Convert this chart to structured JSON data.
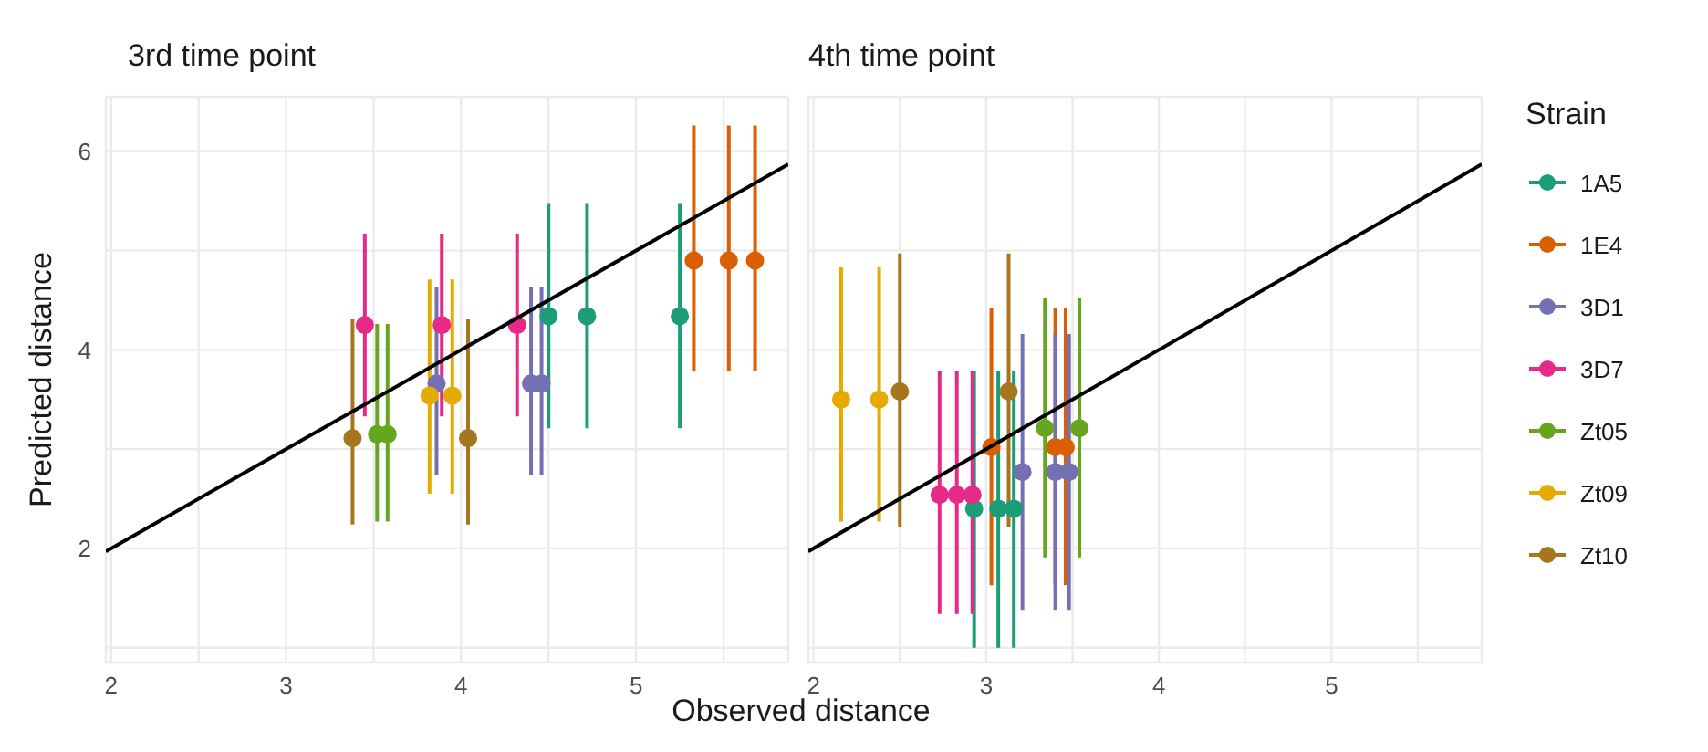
{
  "chart_data": [
    {
      "type": "scatter",
      "title": "3rd time point",
      "legend": "right",
      "legend_title": "Strain",
      "xlabel": "Observed distance",
      "ylabel": "Predicted distance",
      "xlim": [
        1.97,
        5.87
      ],
      "ylim": [
        0.85,
        6.55
      ],
      "xticks": [
        2,
        {
          "value": 2.5,
          "label": null
        },
        3,
        {
          "value": 3.5,
          "label": null
        },
        4,
        {
          "value": 4.5,
          "label": null
        },
        5,
        {
          "value": 5.5,
          "label": null
        }
      ],
      "yticks": [
        {
          "value": 1,
          "label": null
        },
        2,
        {
          "value": 3,
          "label": null
        },
        4,
        {
          "value": 5,
          "label": null
        },
        6
      ],
      "grid": true,
      "marker": "circle",
      "series": [
        {
          "name": "1A5",
          "color": "#1b9e77",
          "x": [
            4.5,
            4.72,
            5.25
          ],
          "values": [
            4.34,
            4.34,
            4.34
          ],
          "errors": [
            [
              3.21,
              5.48
            ],
            [
              3.21,
              5.48
            ],
            [
              3.21,
              5.48
            ]
          ]
        },
        {
          "name": "1E4",
          "color": "#d95f02",
          "x": [
            5.33,
            5.53,
            5.68
          ],
          "values": [
            4.9,
            4.9,
            4.9
          ],
          "errors": [
            [
              3.79,
              6.26
            ],
            [
              3.79,
              6.26
            ],
            [
              3.79,
              6.26
            ]
          ]
        },
        {
          "name": "3D1",
          "color": "#7570b3",
          "x": [
            3.86,
            4.4,
            4.46
          ],
          "values": [
            3.66,
            3.66,
            3.66
          ],
          "errors": [
            [
              2.74,
              4.63
            ],
            [
              2.74,
              4.63
            ],
            [
              2.74,
              4.63
            ]
          ]
        },
        {
          "name": "3D7",
          "color": "#e7298a",
          "x": [
            3.45,
            3.89,
            4.32
          ],
          "values": [
            4.25,
            4.25,
            4.25
          ],
          "errors": [
            [
              3.33,
              5.17
            ],
            [
              3.33,
              5.17
            ],
            [
              3.33,
              5.17
            ]
          ]
        },
        {
          "name": "Zt05",
          "color": "#66a61e",
          "x": [
            3.52,
            3.58
          ],
          "values": [
            3.15,
            3.15
          ],
          "errors": [
            [
              2.27,
              4.26
            ],
            [
              2.27,
              4.26
            ]
          ]
        },
        {
          "name": "Zt09",
          "color": "#e6ab02",
          "x": [
            3.82,
            3.95
          ],
          "values": [
            3.54,
            3.54
          ],
          "errors": [
            [
              2.55,
              4.71
            ],
            [
              2.55,
              4.71
            ]
          ]
        },
        {
          "name": "Zt10",
          "color": "#a6761d",
          "x": [
            3.38,
            4.04
          ],
          "values": [
            3.11,
            3.11
          ],
          "errors": [
            [
              2.24,
              4.31
            ],
            [
              2.24,
              4.31
            ]
          ]
        },
        {
          "type": "line",
          "marker": "none",
          "color": "#000000",
          "x": [
            1.97,
            5.87
          ],
          "values": [
            1.97,
            5.87
          ]
        }
      ]
    },
    {
      "type": "scatter",
      "title": "4th time point",
      "legend": "right",
      "xlim": [
        1.97,
        5.87
      ],
      "ylim": [
        0.85,
        6.55
      ],
      "xticks": [
        2,
        {
          "value": 2.5,
          "label": null
        },
        3,
        {
          "value": 3.5,
          "label": null
        },
        4,
        {
          "value": 4.5,
          "label": null
        },
        5,
        {
          "value": 5.5,
          "label": null
        }
      ],
      "yticks": [
        {
          "value": 1,
          "label": null
        },
        2,
        {
          "value": 3,
          "label": null
        },
        4,
        {
          "value": 5,
          "label": null
        },
        6
      ],
      "grid": true,
      "marker": "circle",
      "tick_labels": "x",
      "series": [
        {
          "name": "1A5",
          "color": "#1b9e77",
          "x": [
            2.93,
            3.07,
            3.16
          ],
          "values": [
            2.4,
            2.4,
            2.4
          ],
          "errors": [
            [
              1.0,
              3.79
            ],
            [
              1.0,
              3.79
            ],
            [
              1.0,
              3.79
            ]
          ]
        },
        {
          "name": "1E4",
          "color": "#d95f02",
          "x": [
            3.03,
            3.4,
            3.46
          ],
          "values": [
            3.02,
            3.02,
            3.02
          ],
          "errors": [
            [
              1.63,
              4.42
            ],
            [
              1.63,
              4.42
            ],
            [
              1.63,
              4.42
            ]
          ]
        },
        {
          "name": "3D1",
          "color": "#7570b3",
          "x": [
            3.21,
            3.4,
            3.48
          ],
          "values": [
            2.77,
            2.77,
            2.77
          ],
          "errors": [
            [
              1.38,
              4.16
            ],
            [
              1.38,
              4.16
            ],
            [
              1.38,
              4.16
            ]
          ]
        },
        {
          "name": "3D7",
          "color": "#e7298a",
          "x": [
            2.73,
            2.83,
            2.92
          ],
          "values": [
            2.54,
            2.54,
            2.54
          ],
          "errors": [
            [
              1.34,
              3.79
            ],
            [
              1.34,
              3.79
            ],
            [
              1.34,
              3.79
            ]
          ]
        },
        {
          "name": "Zt05",
          "color": "#66a61e",
          "x": [
            3.34,
            3.54
          ],
          "values": [
            3.21,
            3.21
          ],
          "errors": [
            [
              1.91,
              4.52
            ],
            [
              1.91,
              4.52
            ]
          ]
        },
        {
          "name": "Zt09",
          "color": "#e6ab02",
          "x": [
            2.16,
            2.38
          ],
          "values": [
            3.5,
            3.5
          ],
          "errors": [
            [
              2.27,
              4.83
            ],
            [
              2.27,
              4.83
            ]
          ]
        },
        {
          "name": "Zt10",
          "color": "#a6761d",
          "x": [
            2.5,
            3.13
          ],
          "values": [
            3.58,
            3.58
          ],
          "errors": [
            [
              2.21,
              4.97
            ],
            [
              2.21,
              4.97
            ]
          ]
        },
        {
          "type": "line",
          "marker": "none",
          "color": "#000000",
          "x": [
            1.97,
            5.87
          ],
          "values": [
            1.97,
            5.87
          ]
        }
      ]
    }
  ]
}
